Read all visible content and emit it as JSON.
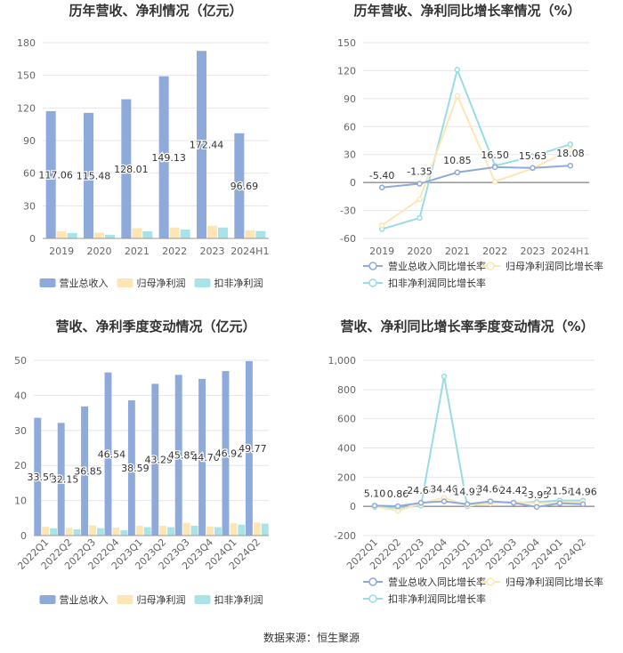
{
  "source": "数据来源：恒生聚源",
  "colors": {
    "revenue": "#8eaadb",
    "net_profit": "#fde6b4",
    "deducted": "#a9e3e8",
    "revenue_line": "#8eaadb",
    "net_profit_line": "#fde6b4",
    "deducted_line": "#99dce3",
    "axis": "#666666",
    "grid": "#e6e6e6",
    "zero_line": "#666666"
  },
  "chart_data": [
    {
      "type": "bar",
      "title": "历年营收、净利情况（亿元）",
      "categories": [
        "2019",
        "2020",
        "2021",
        "2022",
        "2023",
        "2024H1"
      ],
      "ylim": [
        0,
        180
      ],
      "yticks": [
        0,
        30,
        60,
        90,
        120,
        150,
        180
      ],
      "series": [
        {
          "name": "营业总收入",
          "values": [
            117.06,
            115.48,
            128.01,
            149.13,
            172.44,
            96.69
          ],
          "labels": [
            "117.06",
            "115.48",
            "128.01",
            "149.13",
            "172.44",
            "96.69"
          ]
        },
        {
          "name": "归母净利润",
          "values": [
            6.5,
            5.2,
            9.5,
            10.0,
            11.6,
            7.5
          ]
        },
        {
          "name": "扣非净利润",
          "values": [
            5.0,
            3.4,
            6.6,
            8.2,
            10.0,
            6.8
          ]
        }
      ],
      "legend": "bottom"
    },
    {
      "type": "line",
      "title": "历年营收、净利同比增长率情况（%）",
      "categories": [
        "2019",
        "2020",
        "2021",
        "2022",
        "2023",
        "2024H1"
      ],
      "ylim": [
        -60,
        150
      ],
      "yticks": [
        -60,
        -30,
        0,
        30,
        60,
        90,
        120,
        150
      ],
      "series": [
        {
          "name": "营业总收入同比增长率",
          "values": [
            -5.4,
            -1.35,
            10.85,
            16.5,
            15.63,
            18.08
          ],
          "labels": [
            "-5.40",
            "-1.35",
            "10.85",
            "16.50",
            "15.63",
            "18.08"
          ]
        },
        {
          "name": "归母净利润同比增长率",
          "values": [
            -46,
            -18,
            93,
            1,
            15,
            35
          ]
        },
        {
          "name": "扣非净利润同比增长率",
          "values": [
            -50,
            -38,
            121,
            18,
            28,
            41
          ]
        }
      ],
      "legend": "bottom"
    },
    {
      "type": "bar",
      "title": "营收、净利季度变动情况（亿元）",
      "categories": [
        "2022Q1",
        "2022Q2",
        "2022Q3",
        "2022Q4",
        "2023Q1",
        "2023Q2",
        "2023Q3",
        "2023Q4",
        "2024Q1",
        "2024Q2"
      ],
      "ylim": [
        0,
        50
      ],
      "yticks": [
        0,
        10,
        20,
        30,
        40,
        50
      ],
      "series": [
        {
          "name": "营业总收入",
          "values": [
            33.59,
            32.15,
            36.85,
            46.54,
            38.59,
            43.29,
            45.85,
            44.7,
            46.92,
            49.77
          ],
          "labels": [
            "33.59",
            "32.15",
            "36.85",
            "46.54",
            "38.59",
            "43.29",
            "45.85",
            "44.70",
            "46.92",
            "49.77"
          ]
        },
        {
          "name": "归母净利润",
          "values": [
            2.5,
            2.2,
            2.9,
            2.3,
            2.8,
            2.8,
            3.6,
            2.6,
            3.5,
            3.7
          ]
        },
        {
          "name": "扣非净利润",
          "values": [
            2.1,
            1.8,
            2.1,
            1.5,
            2.4,
            2.4,
            2.8,
            2.4,
            3.1,
            3.4
          ]
        }
      ],
      "legend": "bottom"
    },
    {
      "type": "line",
      "title": "营收、净利同比增长率季度变动情况（%）",
      "categories": [
        "2022Q1",
        "2022Q2",
        "2022Q3",
        "2022Q4",
        "2023Q1",
        "2023Q2",
        "2023Q3",
        "2023Q4",
        "2024Q1",
        "2024Q2"
      ],
      "ylim": [
        -200,
        1000
      ],
      "yticks": [
        -200,
        0,
        200,
        400,
        600,
        800,
        1000
      ],
      "ytick_labels": [
        "-200",
        "0",
        "200",
        "400",
        "600",
        "800",
        "1,000"
      ],
      "series": [
        {
          "name": "营业总收入同比增长率",
          "values": [
            5.1,
            0.86,
            24.64,
            34.46,
            14.91,
            34.66,
            24.42,
            -3.95,
            21.58,
            14.96
          ],
          "labels": [
            "5.10",
            "0.86",
            "24.64",
            "34.46",
            "14.91",
            "34.66",
            "24.42",
            "-3.95",
            "21.58",
            "14.96"
          ]
        },
        {
          "name": "归母净利润同比增长率",
          "values": [
            0,
            -30,
            20,
            60,
            5,
            20,
            30,
            20,
            25,
            30
          ]
        },
        {
          "name": "扣非净利润同比增长率",
          "values": [
            -5,
            -10,
            5,
            890,
            0,
            30,
            25,
            30,
            40,
            40
          ]
        }
      ],
      "legend": "bottom"
    }
  ]
}
